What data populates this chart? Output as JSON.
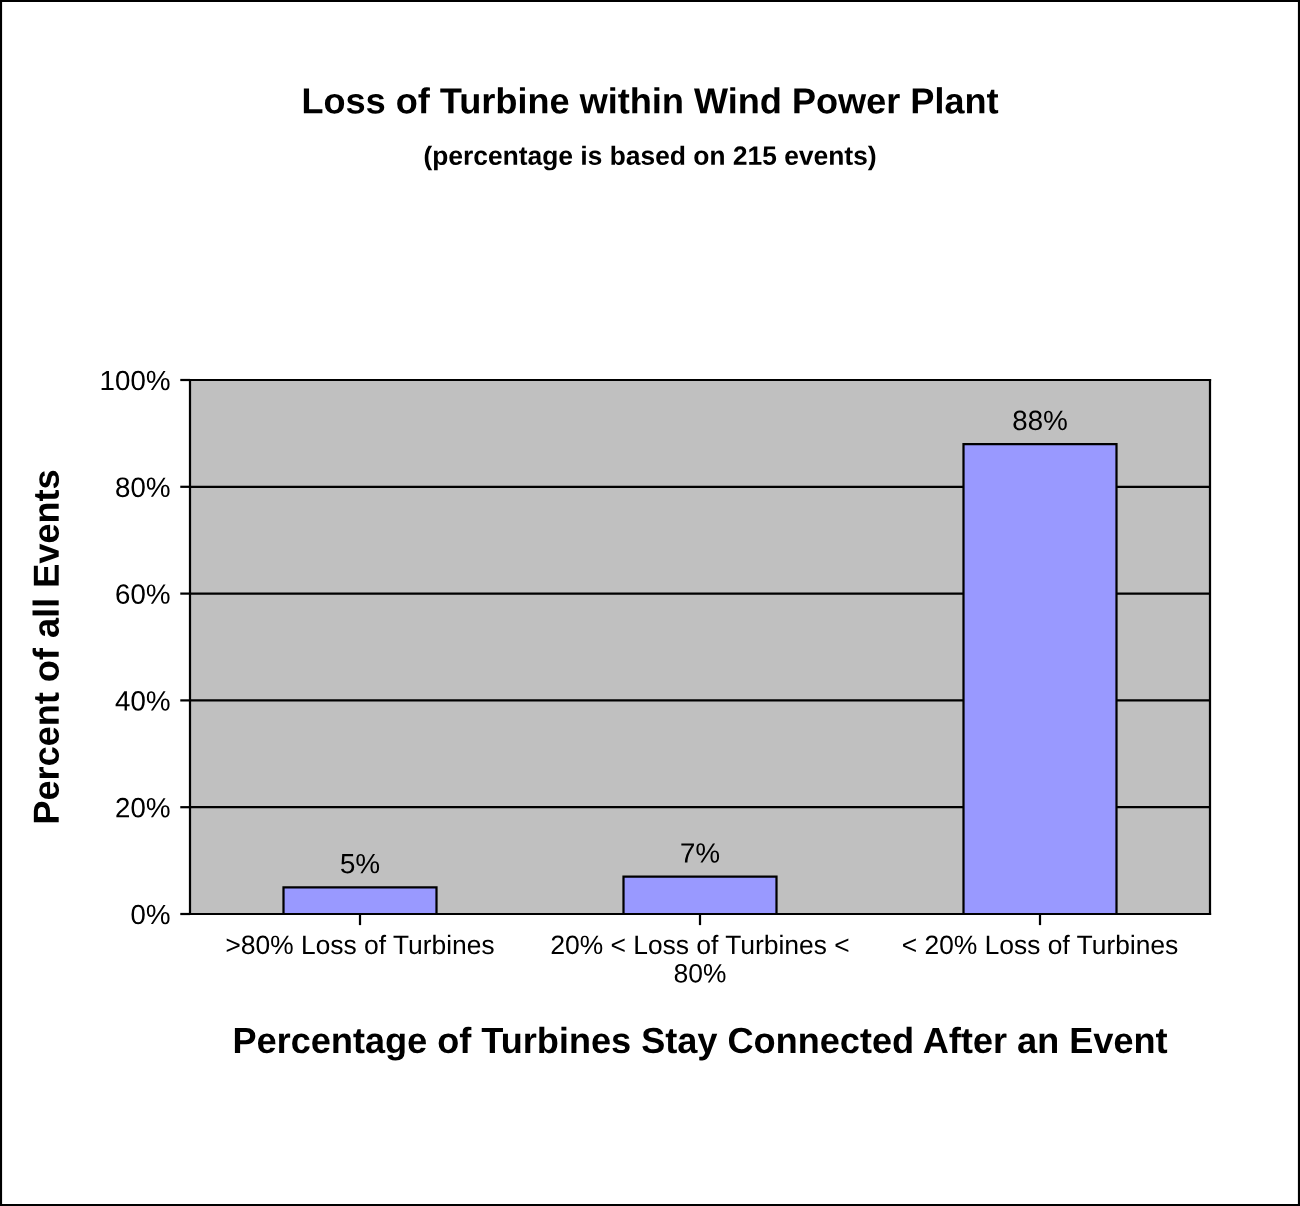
{
  "chart_data": {
    "type": "bar",
    "title": "Loss of Turbine within Wind Power Plant",
    "subtitle": "(percentage is based on 215 events)",
    "xlabel": "Percentage of Turbines Stay Connected After an Event",
    "ylabel": "Percent of all Events",
    "categories": [
      ">80% Loss of Turbines",
      "20% < Loss of Turbines <\n80%",
      "< 20% Loss of Turbines"
    ],
    "values": [
      5,
      7,
      88
    ],
    "value_labels": [
      "5%",
      "7%",
      "88%"
    ],
    "color": "#9999ff",
    "ylim": [
      0,
      100
    ],
    "yticks": [
      {
        "value": 0,
        "label": "0%"
      },
      {
        "value": 20,
        "label": "20%"
      },
      {
        "value": 40,
        "label": "40%"
      },
      {
        "value": 60,
        "label": "60%"
      },
      {
        "value": 80,
        "label": "80%"
      },
      {
        "value": 100,
        "label": "100%"
      }
    ],
    "grid": "y",
    "legend": false
  }
}
